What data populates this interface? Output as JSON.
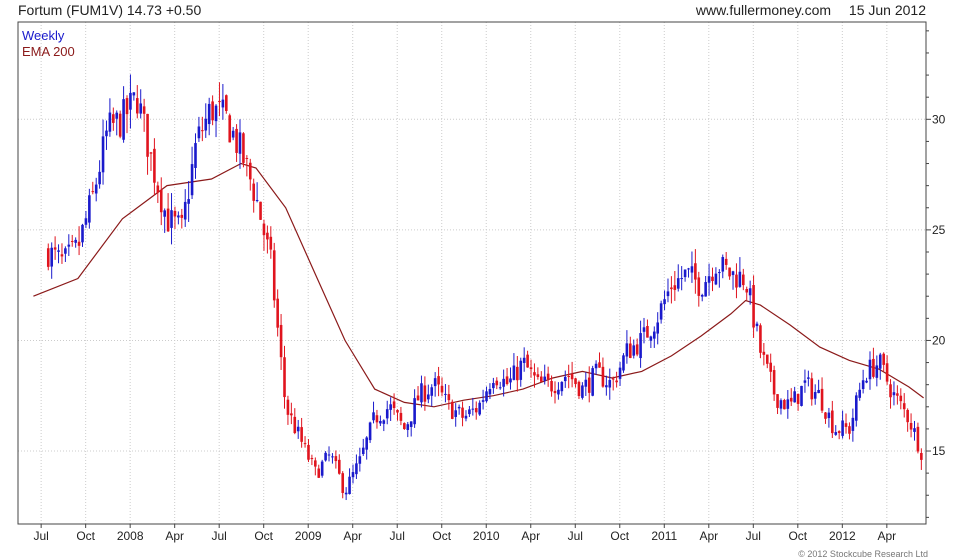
{
  "header": {
    "title": "Fortum (FUM1V) 14.73 +0.50",
    "website": "www.fullermoney.com",
    "date": "15 Jun 2012"
  },
  "legend": {
    "weekly": "Weekly",
    "ema": "EMA 200"
  },
  "footer": {
    "copyright": "© 2012 Stockcube Research Ltd"
  },
  "colors": {
    "up": "#1a1acc",
    "down": "#e0141e",
    "ema": "#8b1a1a",
    "grid": "#cccccc"
  },
  "chart_data": {
    "type": "candlestick",
    "frequency": "weekly",
    "ylim": [
      11.7,
      34.4
    ],
    "y_ticks": [
      15,
      20,
      25,
      30
    ],
    "x_ticks": [
      "Jul",
      "Oct",
      "2008",
      "Apr",
      "Jul",
      "Oct",
      "2009",
      "Apr",
      "Jul",
      "Oct",
      "2010",
      "Apr",
      "Jul",
      "Oct",
      "2011",
      "Apr",
      "Jul",
      "Oct",
      "2012",
      "Apr"
    ],
    "grid": true,
    "legend_position": "top-left",
    "series": [
      {
        "name": "Weekly",
        "style": "candlestick",
        "x": [
          "2007-07",
          "2007-08",
          "2007-09",
          "2007-10",
          "2007-11",
          "2007-12",
          "2008-01",
          "2008-02",
          "2008-03",
          "2008-04",
          "2008-05",
          "2008-06",
          "2008-07",
          "2008-08",
          "2008-09",
          "2008-10",
          "2008-11",
          "2008-12",
          "2009-01",
          "2009-02",
          "2009-03",
          "2009-04",
          "2009-05",
          "2009-06",
          "2009-07",
          "2009-08",
          "2009-09",
          "2009-10",
          "2009-11",
          "2009-12",
          "2010-01",
          "2010-02",
          "2010-03",
          "2010-04",
          "2010-05",
          "2010-06",
          "2010-07",
          "2010-08",
          "2010-09",
          "2010-10",
          "2010-11",
          "2010-12",
          "2011-01",
          "2011-02",
          "2011-03",
          "2011-04",
          "2011-05",
          "2011-06",
          "2011-07",
          "2011-08",
          "2011-09",
          "2011-10",
          "2011-11",
          "2011-12",
          "2012-01",
          "2012-02",
          "2012-03",
          "2012-04",
          "2012-05",
          "2012-06"
        ],
        "close": [
          24.0,
          23.5,
          24.2,
          26.5,
          29.5,
          30.0,
          31.0,
          28.0,
          25.5,
          25.0,
          29.0,
          30.5,
          30.0,
          28.5,
          26.5,
          23.5,
          17.0,
          15.5,
          14.0,
          14.8,
          13.2,
          14.5,
          16.5,
          17.0,
          16.0,
          17.5,
          18.0,
          17.0,
          16.5,
          17.0,
          18.5,
          18.0,
          19.0,
          18.0,
          18.0,
          18.5,
          17.8,
          18.5,
          18.0,
          19.5,
          20.0,
          21.0,
          22.5,
          23.0,
          22.5,
          23.5,
          23.0,
          22.8,
          19.5,
          17.5,
          17.0,
          18.0,
          17.5,
          16.0,
          16.0,
          18.5,
          19.0,
          17.5,
          16.5,
          14.73
        ]
      },
      {
        "name": "EMA 200",
        "style": "line",
        "x": [
          "2007-06",
          "2007-09",
          "2007-12",
          "2008-03",
          "2008-06",
          "2008-08",
          "2008-09",
          "2008-11",
          "2009-01",
          "2009-03",
          "2009-05",
          "2009-07",
          "2009-09",
          "2009-11",
          "2010-01",
          "2010-03",
          "2010-05",
          "2010-07",
          "2010-09",
          "2010-11",
          "2011-01",
          "2011-03",
          "2011-05",
          "2011-06",
          "2011-07",
          "2011-09",
          "2011-11",
          "2012-01",
          "2012-03",
          "2012-05",
          "2012-06"
        ],
        "values": [
          22.0,
          22.8,
          25.5,
          27.0,
          27.3,
          28.0,
          27.8,
          26.0,
          23.0,
          20.0,
          17.8,
          17.2,
          17.0,
          17.3,
          17.5,
          17.8,
          18.3,
          18.6,
          18.3,
          18.6,
          19.3,
          20.2,
          21.2,
          21.8,
          21.6,
          20.7,
          19.7,
          19.1,
          18.7,
          17.9,
          17.4
        ]
      }
    ]
  }
}
